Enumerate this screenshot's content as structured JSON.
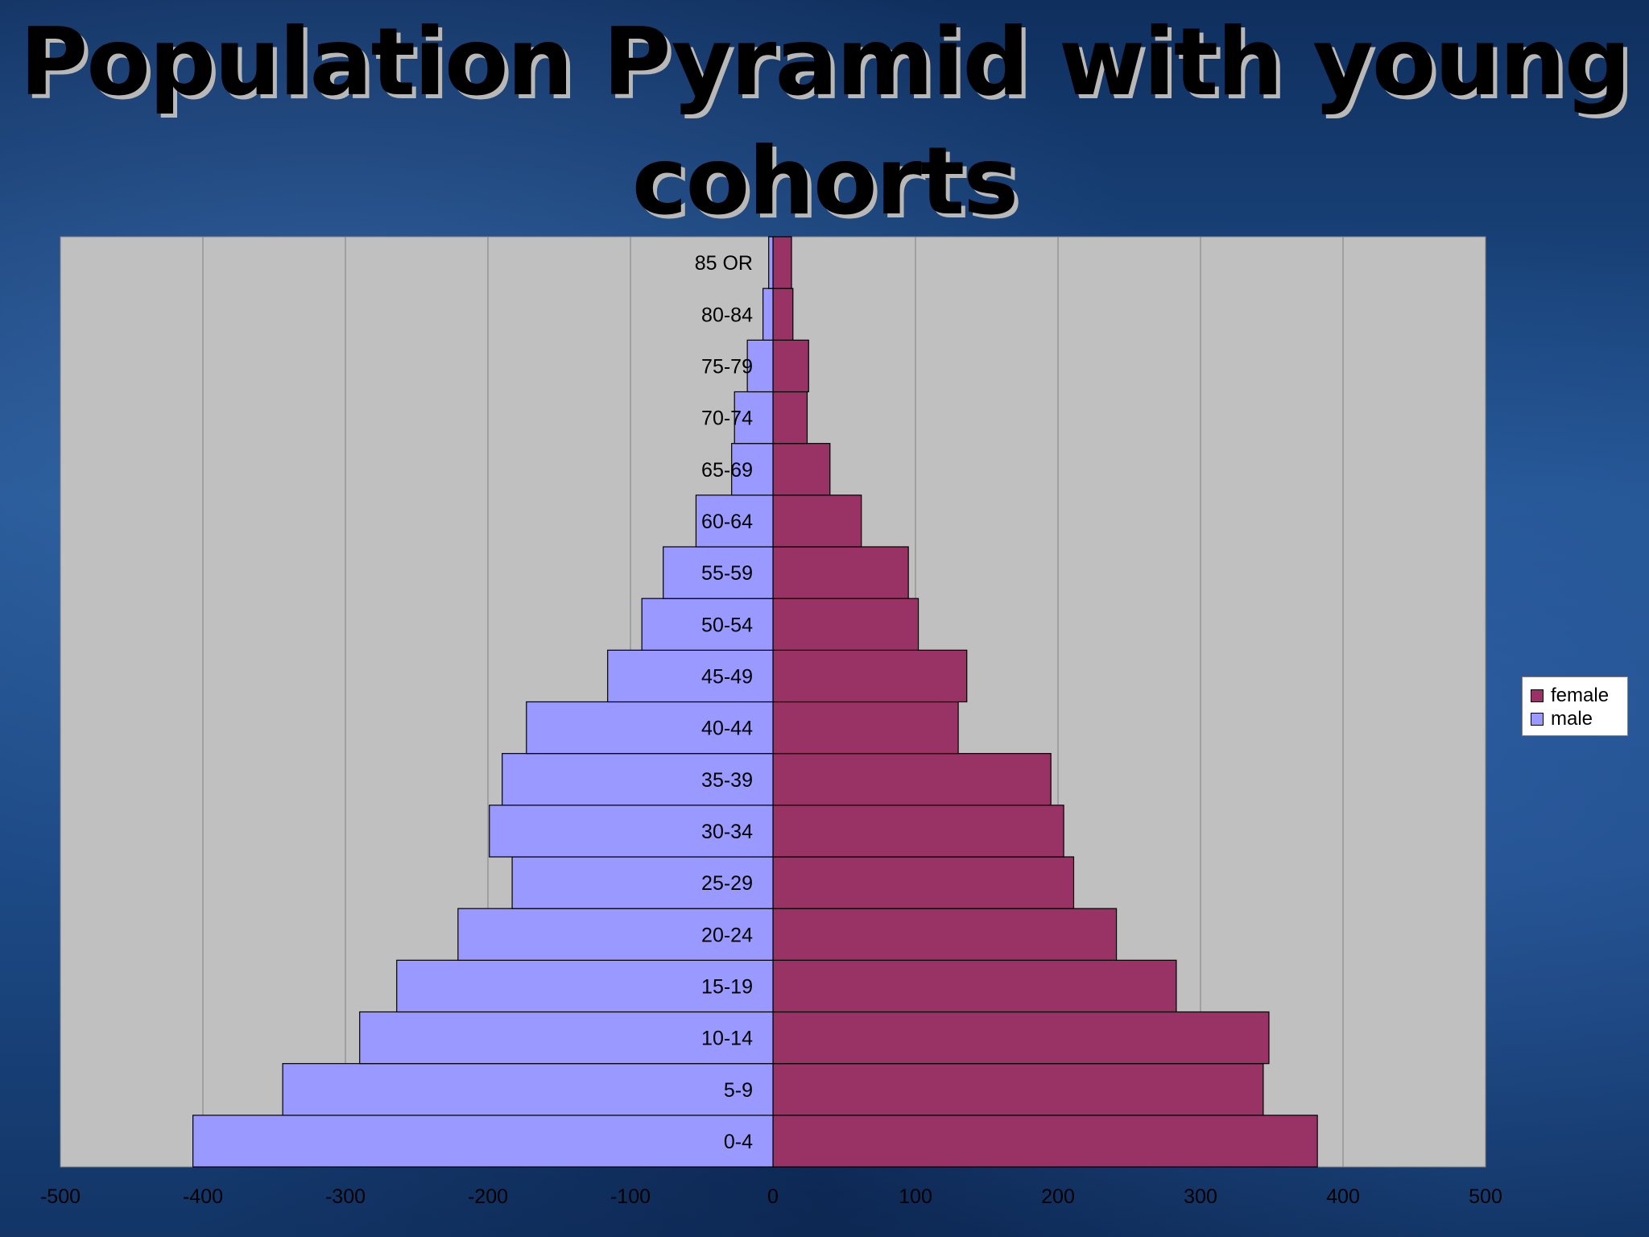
{
  "slide": {
    "title": "Population Pyramid with young cohorts"
  },
  "colors": {
    "female": "#993366",
    "male": "#9999ff",
    "plot_background": "#c0c0c0",
    "gridline": "#808080"
  },
  "chart_data": {
    "type": "bar",
    "orientation": "horizontal",
    "title": "",
    "xlabel": "",
    "ylabel": "",
    "categories": [
      "0-4",
      "5-9",
      "10-14",
      "15-19",
      "20-24",
      "25-29",
      "30-34",
      "35-39",
      "40-44",
      "45-49",
      "50-54",
      "55-59",
      "60-64",
      "65-69",
      "70-74",
      "75-79",
      "80-84",
      "85 OR"
    ],
    "series": [
      {
        "name": "female",
        "values": [
          382,
          344,
          348,
          283,
          241,
          211,
          204,
          195,
          130,
          136,
          102,
          95,
          62,
          40,
          24,
          25,
          14,
          13
        ]
      },
      {
        "name": "male",
        "values": [
          -407,
          -344,
          -290,
          -264,
          -221,
          -183,
          -199,
          -190,
          -173,
          -116,
          -92,
          -77,
          -54,
          -29,
          -27,
          -18,
          -7,
          -3
        ]
      }
    ],
    "xlim": [
      -500,
      500
    ],
    "xticks": [
      "-500",
      "-400",
      "-300",
      "-200",
      "-100",
      "0",
      "100",
      "200",
      "300",
      "400",
      "500"
    ],
    "grid": true,
    "legend_position": "right"
  }
}
